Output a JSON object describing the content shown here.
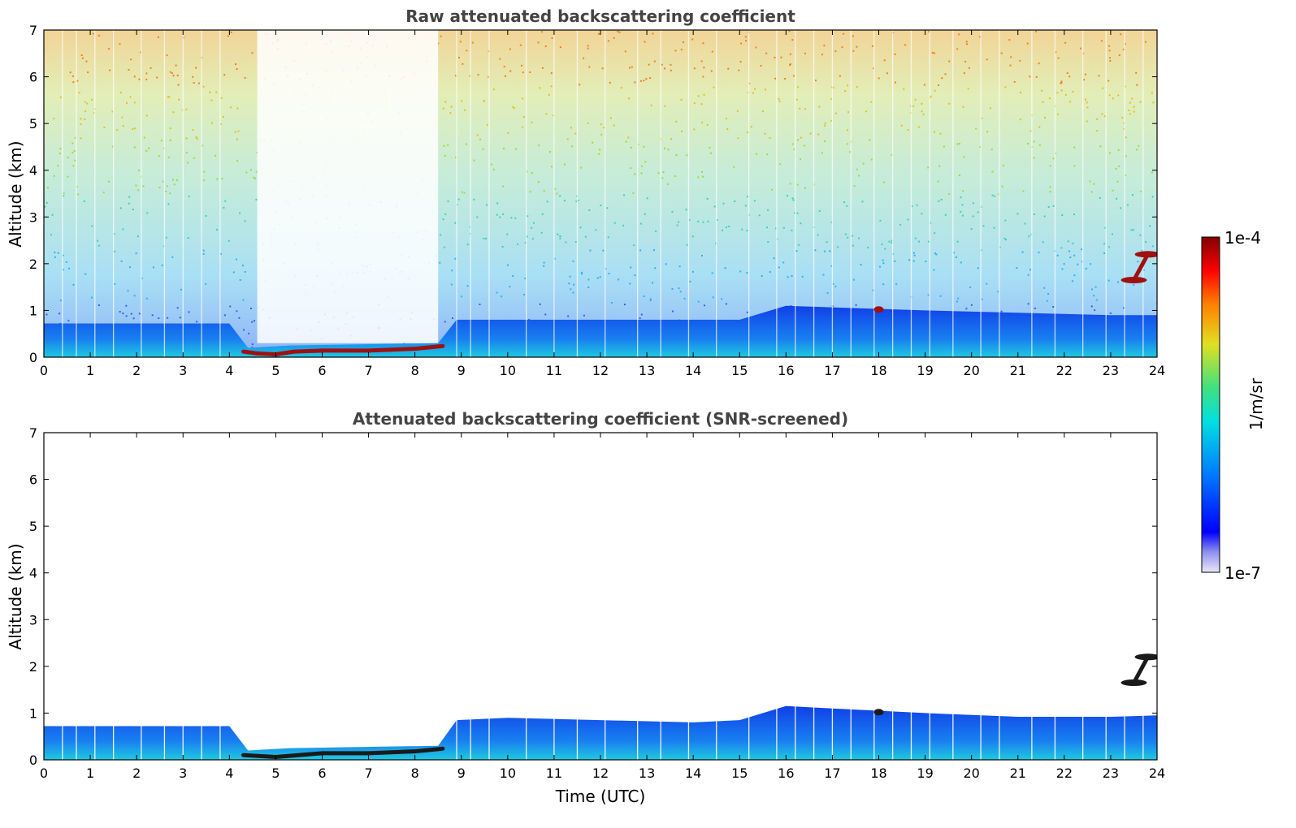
{
  "chart_data": [
    {
      "type": "heatmap",
      "title": "Raw attenuated backscattering coefficient",
      "xlabel": "",
      "ylabel": "Altitude (km)",
      "xlim": [
        0,
        24
      ],
      "ylim": [
        0,
        7
      ],
      "x_ticks": [
        0,
        1,
        2,
        3,
        4,
        5,
        6,
        7,
        8,
        9,
        10,
        11,
        12,
        13,
        14,
        15,
        16,
        17,
        18,
        19,
        20,
        21,
        22,
        23,
        24
      ],
      "y_ticks": [
        0,
        1,
        2,
        3,
        4,
        5,
        6,
        7
      ],
      "cloud_base_km": [
        [
          4.3,
          0.12
        ],
        [
          4.6,
          0.08
        ],
        [
          5.0,
          0.06
        ],
        [
          5.4,
          0.12
        ],
        [
          6.0,
          0.14
        ],
        [
          7.0,
          0.14
        ],
        [
          7.5,
          0.16
        ],
        [
          8.0,
          0.18
        ],
        [
          8.6,
          0.24
        ],
        [
          18.0,
          1.02
        ],
        [
          23.5,
          1.65
        ],
        [
          23.8,
          2.2
        ]
      ],
      "boundary_layer_top_km": [
        [
          0,
          0.72
        ],
        [
          4.0,
          0.72
        ],
        [
          4.4,
          0.2
        ],
        [
          5.3,
          0.25
        ],
        [
          8.5,
          0.3
        ],
        [
          8.9,
          0.8
        ],
        [
          12.0,
          0.8
        ],
        [
          15.0,
          0.8
        ],
        [
          16.0,
          1.1
        ],
        [
          19.0,
          1.0
        ],
        [
          23.0,
          0.9
        ],
        [
          24.0,
          0.9
        ]
      ]
    },
    {
      "type": "heatmap",
      "title": "Attenuated backscattering coefficient (SNR-screened)",
      "xlabel": "Time (UTC)",
      "ylabel": "Altitude (km)",
      "xlim": [
        0,
        24
      ],
      "ylim": [
        0,
        7
      ],
      "x_ticks": [
        0,
        1,
        2,
        3,
        4,
        5,
        6,
        7,
        8,
        9,
        10,
        11,
        12,
        13,
        14,
        15,
        16,
        17,
        18,
        19,
        20,
        21,
        22,
        23,
        24
      ],
      "y_ticks": [
        0,
        1,
        2,
        3,
        4,
        5,
        6,
        7
      ],
      "cloud_base_km": [
        [
          4.3,
          0.1
        ],
        [
          5.0,
          0.06
        ],
        [
          6.0,
          0.14
        ],
        [
          7.0,
          0.14
        ],
        [
          8.0,
          0.18
        ],
        [
          8.6,
          0.24
        ],
        [
          18.0,
          1.02
        ],
        [
          23.5,
          1.65
        ],
        [
          23.8,
          2.2
        ]
      ],
      "boundary_layer_top_km": [
        [
          0,
          0.72
        ],
        [
          4.0,
          0.72
        ],
        [
          4.4,
          0.2
        ],
        [
          5.3,
          0.25
        ],
        [
          8.5,
          0.3
        ],
        [
          8.9,
          0.85
        ],
        [
          10.0,
          0.9
        ],
        [
          12.0,
          0.85
        ],
        [
          14.0,
          0.8
        ],
        [
          15.0,
          0.85
        ],
        [
          16.0,
          1.15
        ],
        [
          17.0,
          1.1
        ],
        [
          19.0,
          1.0
        ],
        [
          21.0,
          0.92
        ],
        [
          23.0,
          0.92
        ],
        [
          24.0,
          0.95
        ]
      ]
    }
  ],
  "colorbar": {
    "max_label": "1e-4",
    "min_label": "1e-7",
    "units_label": "1/m/sr",
    "colors": [
      "#e8e8f8",
      "#0000ff",
      "#0080ff",
      "#00e0e0",
      "#40e080",
      "#e0e020",
      "#ff8000",
      "#ff0000",
      "#800000"
    ]
  }
}
